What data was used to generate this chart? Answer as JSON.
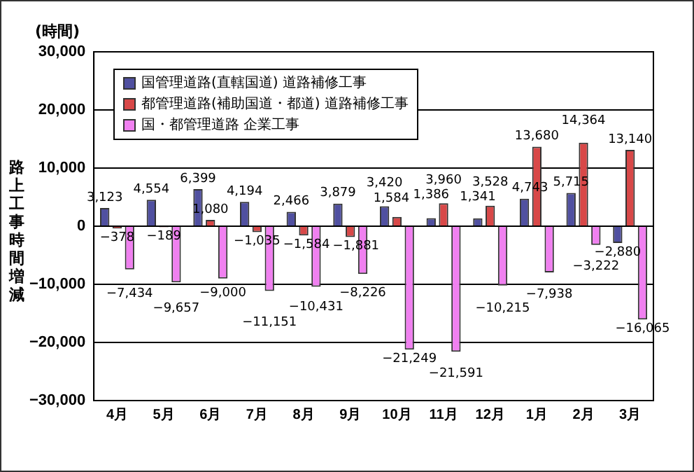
{
  "chart_data": {
    "type": "bar",
    "ylabel": "路上工事時間増減",
    "annotations": [
      "(時間)"
    ],
    "categories": [
      "4月",
      "5月",
      "6月",
      "7月",
      "8月",
      "9月",
      "10月",
      "11月",
      "12月",
      "1月",
      "2月",
      "3月"
    ],
    "series": [
      {
        "name": "国管理道路(直轄国道)  道路補修工事",
        "color": "#5050a0",
        "values": [
          3123,
          4554,
          6399,
          4194,
          2466,
          3879,
          3420,
          1386,
          1341,
          4743,
          5715,
          -2880
        ],
        "value_labels": [
          "3,123",
          "4,554",
          "6,399",
          "4,194",
          "2,466",
          "3,879",
          "3,420",
          "1,386",
          "1,341",
          "4,743",
          "5,715",
          "−2,880"
        ]
      },
      {
        "name": "都管理道路(補助国道・都道)  道路補修工事",
        "color": "#d84848",
        "values": [
          -378,
          -189,
          1080,
          -1035,
          -1584,
          -1881,
          1584,
          3960,
          3528,
          13680,
          14364,
          13140
        ],
        "value_labels": [
          "−378",
          "−189",
          "1,080",
          "−1,035",
          "−1,584",
          "−1,881",
          "1,584",
          "3,960",
          "3,528",
          "13,680",
          "14,364",
          "13,140"
        ]
      },
      {
        "name": "国・都管理道路  企業工事",
        "color": "#f080f0",
        "values": [
          -7434,
          -9657,
          -9000,
          -11151,
          -10431,
          -8226,
          -21249,
          -21591,
          -10215,
          -7938,
          -3222,
          -16065
        ],
        "value_labels": [
          "−7,434",
          "−9,657",
          "−9,000",
          "−11,151",
          "−10,431",
          "−8,226",
          "−21,249",
          "−21,591",
          "−10,215",
          "−7,938",
          "−3,222",
          "−16,065"
        ]
      }
    ],
    "ylim": [
      -30000,
      30000
    ],
    "yticks": [
      {
        "value": -30000,
        "label": "−30,000"
      },
      {
        "value": -20000,
        "label": "−20,000"
      },
      {
        "value": -10000,
        "label": "−10,000"
      },
      0,
      {
        "value": 10000,
        "label": "10,000"
      },
      {
        "value": 20000,
        "label": "20,000"
      },
      {
        "value": 30000,
        "label": "30,000"
      }
    ],
    "grid": "y",
    "legend": "top left",
    "data_labels": true
  }
}
